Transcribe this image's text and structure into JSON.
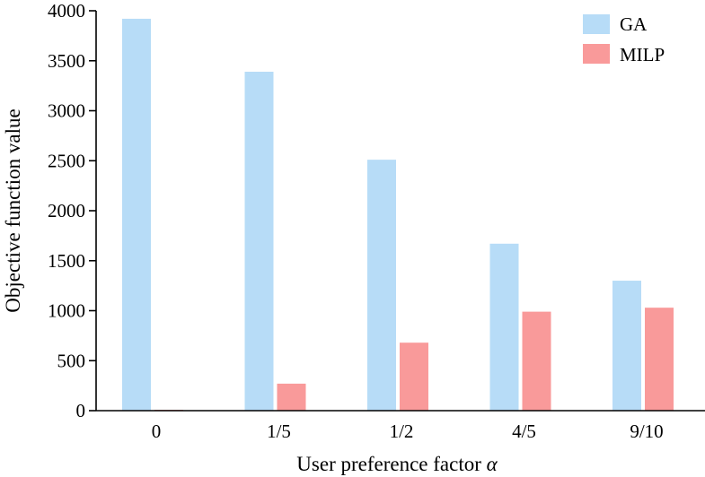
{
  "chart_data": {
    "type": "bar",
    "categories": [
      "0",
      "1/5",
      "1/2",
      "4/5",
      "9/10"
    ],
    "series": [
      {
        "name": "GA",
        "color": "#b7dcf7",
        "values": [
          3920,
          3390,
          2510,
          1670,
          1300
        ]
      },
      {
        "name": "MILP",
        "color": "#f99a9a",
        "values": [
          0,
          270,
          680,
          990,
          1030
        ]
      }
    ],
    "xlabel": "User preference factor",
    "xlabel_symbol": "α",
    "ylabel": "Objective function value",
    "ylim": [
      0,
      4000
    ],
    "yticks": [
      "0",
      "500",
      "1000",
      "1500",
      "2000",
      "2500",
      "3000",
      "3500",
      "4000"
    ],
    "grid": false,
    "legend_position": "top-right"
  }
}
